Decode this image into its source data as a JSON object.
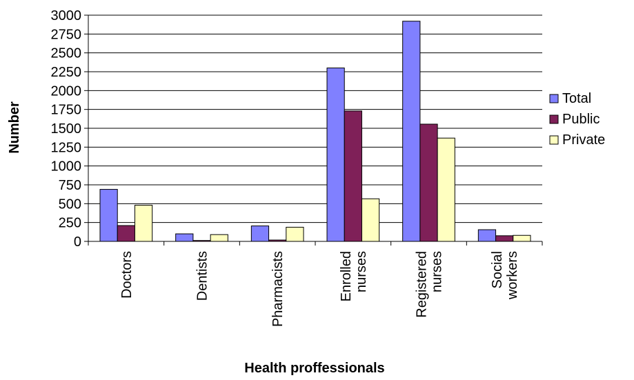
{
  "chart_data": {
    "type": "bar",
    "title": "",
    "xlabel": "Health proffessionals",
    "ylabel": "Number",
    "ylim": [
      0,
      3000
    ],
    "yticks": [
      "0",
      "250",
      "500",
      "750",
      "1000",
      "1250",
      "1500",
      "1750",
      "2000",
      "2250",
      "2500",
      "2750",
      "3000"
    ],
    "grid": true,
    "legend_position": "right",
    "categories": [
      [
        "Doctors"
      ],
      [
        "Dentists"
      ],
      [
        "Pharmacists"
      ],
      [
        "Enrolled",
        "nurses"
      ],
      [
        "Registered",
        "nurses"
      ],
      [
        "Social",
        "workers"
      ]
    ],
    "series": [
      {
        "name": "Total",
        "color": "#8080ff",
        "values": [
          690,
          100,
          205,
          2300,
          2920,
          155
        ]
      },
      {
        "name": "Public",
        "color": "#7f2058",
        "values": [
          210,
          12,
          18,
          1730,
          1555,
          75
        ]
      },
      {
        "name": "Private",
        "color": "#ffffc0",
        "values": [
          480,
          90,
          188,
          565,
          1370,
          80
        ]
      }
    ]
  }
}
